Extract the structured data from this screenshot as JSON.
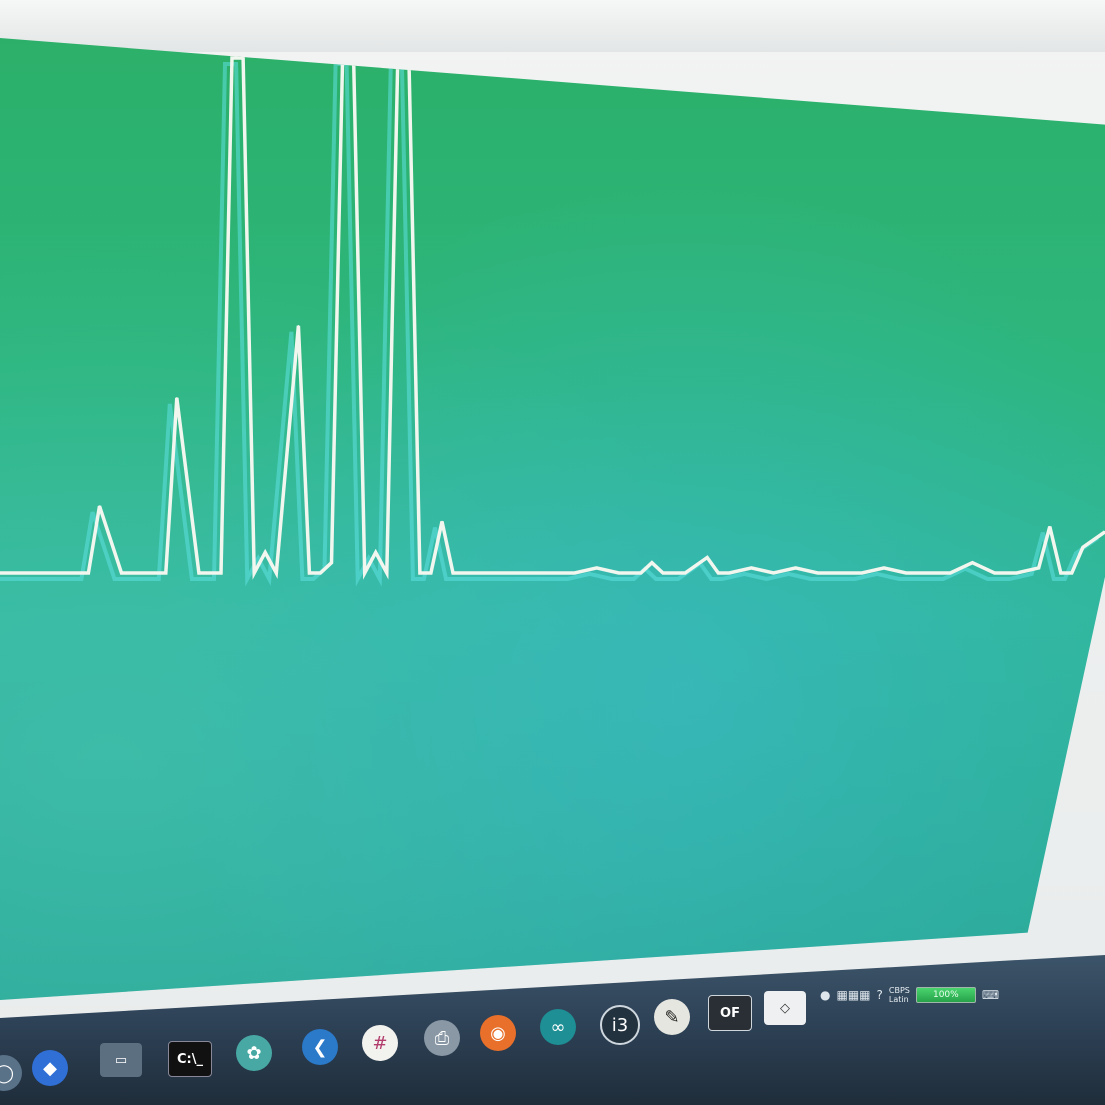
{
  "chart_data": {
    "type": "line",
    "title": "",
    "xlabel": "",
    "ylabel": "",
    "grid": false,
    "line_color": "#f1f6ee",
    "baseline": 0,
    "ylim": [
      0,
      100
    ],
    "series": [
      {
        "x": [
          0,
          3,
          6,
          8,
          9,
          11,
          13,
          15,
          16,
          18,
          20,
          21,
          22,
          23,
          24,
          25,
          26,
          27,
          28,
          29,
          30,
          31,
          32,
          33,
          34,
          35,
          36,
          37,
          38,
          39,
          40,
          41,
          42,
          43,
          44,
          45,
          46,
          47,
          48,
          49,
          50,
          51,
          52,
          54,
          56,
          58,
          59,
          60,
          62,
          64,
          65,
          66,
          68,
          70,
          72,
          74,
          76,
          78,
          80,
          82,
          84,
          86,
          88,
          90,
          92,
          94,
          95,
          96,
          97,
          98,
          100
        ],
        "values": [
          0,
          0,
          0,
          0,
          13,
          0,
          0,
          0,
          34,
          0,
          0,
          100,
          100,
          0,
          4,
          0,
          24,
          48,
          0,
          0,
          2,
          100,
          100,
          0,
          4,
          0,
          100,
          100,
          0,
          0,
          10,
          0,
          0,
          0,
          0,
          0,
          0,
          0,
          0,
          0,
          0,
          0,
          0,
          1,
          0,
          0,
          2,
          0,
          0,
          3,
          0,
          0,
          1,
          0,
          1,
          0,
          0,
          0,
          1,
          0,
          0,
          0,
          2,
          0,
          0,
          1,
          9,
          0,
          0,
          5,
          8
        ]
      }
    ]
  },
  "taskbar": {
    "icons": [
      "start-orb-icon",
      "dropbox-icon",
      "computer-icon",
      "terminal-icon",
      "tool-icon",
      "vscode-icon",
      "slack-icon",
      "printer-icon",
      "firefox-icon",
      "arduino-icon",
      "i3-icon",
      "inkscape-icon",
      "openframeworks-icon",
      "unity-icon"
    ],
    "terminal_label": "C:\\_",
    "i3_label": "i3",
    "of_label": "OF",
    "tray": {
      "lang_top": "CBPS",
      "lang_bottom": "Latin",
      "battery_label": "100%"
    }
  }
}
